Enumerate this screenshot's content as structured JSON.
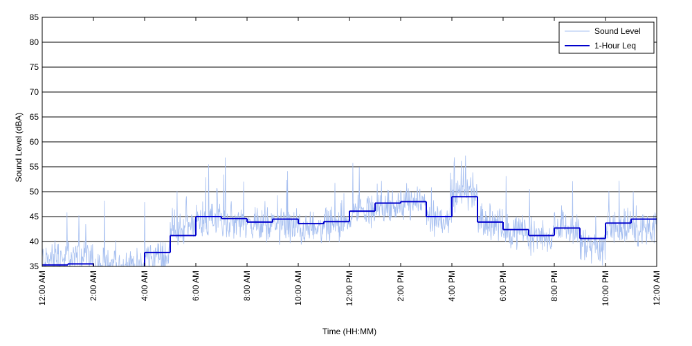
{
  "chart_data": {
    "type": "line",
    "title": "",
    "xlabel": "Time (HH:MM)",
    "ylabel": "Sound Level (dBA)",
    "xlim": [
      0,
      24
    ],
    "ylim": [
      35,
      85
    ],
    "x_ticks": [
      {
        "x": 0,
        "label": "12:00 AM"
      },
      {
        "x": 2,
        "label": "2:00 AM"
      },
      {
        "x": 4,
        "label": "4:00 AM"
      },
      {
        "x": 6,
        "label": "6:00 AM"
      },
      {
        "x": 8,
        "label": "8:00 AM"
      },
      {
        "x": 10,
        "label": "10:00 AM"
      },
      {
        "x": 12,
        "label": "12:00 PM"
      },
      {
        "x": 14,
        "label": "2:00 PM"
      },
      {
        "x": 16,
        "label": "4:00 PM"
      },
      {
        "x": 18,
        "label": "6:00 PM"
      },
      {
        "x": 20,
        "label": "8:00 PM"
      },
      {
        "x": 22,
        "label": "10:00 PM"
      },
      {
        "x": 24,
        "label": "12:00 AM"
      }
    ],
    "y_ticks": [
      35,
      40,
      45,
      50,
      55,
      60,
      65,
      70,
      75,
      80,
      85
    ],
    "grid": "horizontal",
    "legend_position": "top-right",
    "series": [
      {
        "name": "Sound Level",
        "color": "#a6bff0",
        "style": "thin-noisy",
        "hourly_levels": [
          36.5,
          37.0,
          35.0,
          35.0,
          37.0,
          42.5,
          44.5,
          44.0,
          43.5,
          43.0,
          42.5,
          43.5,
          46.0,
          47.0,
          47.5,
          44.5,
          49.5,
          44.0,
          42.0,
          41.0,
          42.5,
          39.0,
          43.0,
          42.0
        ]
      },
      {
        "name": "1-Hour Leq",
        "color": "#0000cc",
        "style": "step",
        "x": [
          0,
          1,
          2,
          3,
          4,
          5,
          6,
          7,
          8,
          9,
          10,
          11,
          12,
          13,
          14,
          15,
          16,
          17,
          18,
          19,
          20,
          21,
          22,
          23
        ],
        "values": [
          35.3,
          35.5,
          null,
          null,
          37.8,
          41.2,
          45.0,
          44.6,
          43.9,
          44.5,
          43.6,
          44.0,
          46.1,
          47.7,
          48.0,
          45.0,
          49.0,
          43.9,
          42.4,
          41.2,
          42.7,
          40.6,
          43.7,
          44.5
        ]
      }
    ]
  }
}
